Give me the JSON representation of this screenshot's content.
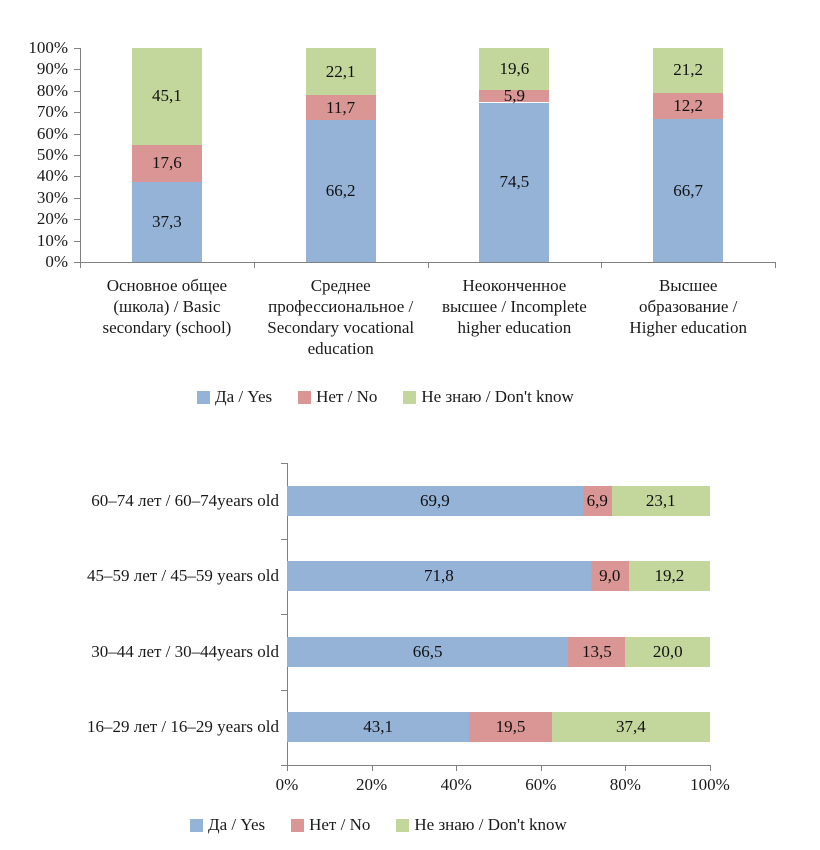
{
  "colors": {
    "yes": "#95B3D7",
    "no": "#D99694",
    "dont_know": "#C3D69B",
    "axis": "#808080",
    "text": "#1a1a1a"
  },
  "legend": {
    "items": [
      {
        "key": "yes",
        "label": "Да / Yes",
        "color": "#95B3D7"
      },
      {
        "key": "no",
        "label": "Нет / No",
        "color": "#D99694"
      },
      {
        "key": "dont-know",
        "label": "Не знаю / Don't know",
        "color": "#C3D69B"
      }
    ]
  },
  "chart_data": [
    {
      "type": "bar",
      "orientation": "vertical",
      "stacked": true,
      "percent_stacked": true,
      "title": "",
      "gridlines": false,
      "legend_position": "bottom",
      "decimal_separator": ",",
      "categories": [
        "Основное общее\n(школа) / Basic\nsecondary (school)",
        "Среднее\nпрофессиональное /\nSecondary vocational\neducation",
        "Неоконченное\nвысшее / Incomplete\nhigher education",
        "Высшее\nобразование /\nHigher education"
      ],
      "series": [
        {
          "key": "yes",
          "name": "Да / Yes",
          "color": "#95B3D7",
          "values": [
            37.3,
            66.2,
            74.5,
            66.7
          ]
        },
        {
          "key": "no",
          "name": "Нет / No",
          "color": "#D99694",
          "values": [
            17.6,
            11.7,
            5.9,
            12.2
          ]
        },
        {
          "key": "dont-know",
          "name": "Не знаю / Don't know",
          "color": "#C3D69B",
          "values": [
            45.1,
            22.1,
            19.6,
            21.2
          ]
        }
      ],
      "y_axis": {
        "min": 0,
        "max": 100,
        "tick_labels": [
          "0%",
          "10%",
          "20%",
          "30%",
          "40%",
          "50%",
          "60%",
          "70%",
          "80%",
          "90%",
          "100%"
        ]
      }
    },
    {
      "type": "bar",
      "orientation": "horizontal",
      "stacked": true,
      "percent_stacked": true,
      "title": "",
      "gridlines": false,
      "legend_position": "bottom",
      "decimal_separator": ",",
      "categories": [
        "60–74 лет / 60–74years old",
        "45–59 лет / 45–59 years old",
        "30–44 лет / 30–44years old",
        "16–29 лет / 16–29 years old"
      ],
      "series": [
        {
          "key": "yes",
          "name": "Да / Yes",
          "color": "#95B3D7",
          "values": [
            69.9,
            71.8,
            66.5,
            43.1
          ]
        },
        {
          "key": "no",
          "name": "Нет / No",
          "color": "#D99694",
          "values": [
            6.9,
            9.0,
            13.5,
            19.5
          ]
        },
        {
          "key": "dont-know",
          "name": "Не знаю / Don't know",
          "color": "#C3D69B",
          "values": [
            23.1,
            19.2,
            20.0,
            37.4
          ]
        }
      ],
      "x_axis": {
        "min": 0,
        "max": 100,
        "tick_labels": [
          "0%",
          "20%",
          "40%",
          "60%",
          "80%",
          "100%"
        ]
      }
    }
  ]
}
